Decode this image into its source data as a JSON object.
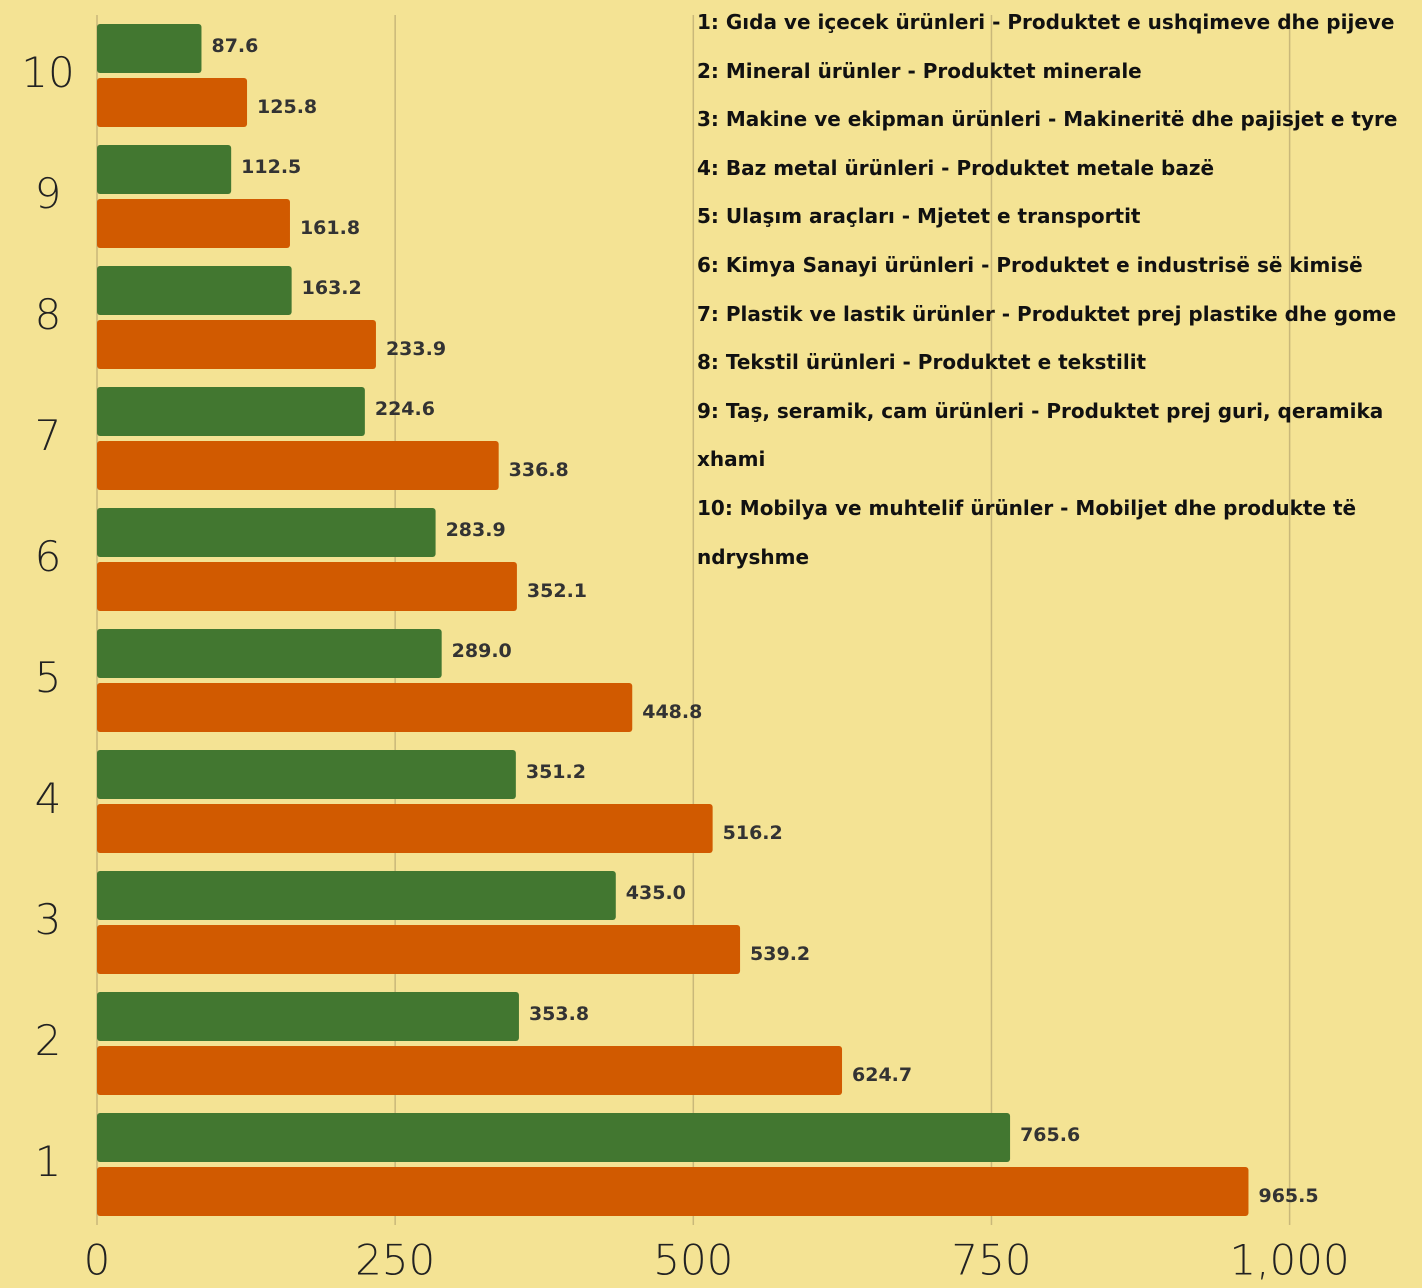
{
  "chart_data": {
    "type": "hbar",
    "categories": [
      "1",
      "2",
      "3",
      "4",
      "5",
      "6",
      "7",
      "8",
      "9",
      "10"
    ],
    "series": [
      {
        "color": "#427730",
        "values": [
          765.6,
          353.8,
          435.0,
          351.2,
          289.0,
          283.9,
          224.6,
          163.2,
          112.5,
          87.6
        ],
        "value_labels": [
          "765.6",
          "353.8",
          "435.0",
          "351.2",
          "289.0",
          "283.9",
          "224.6",
          "163.2",
          "112.5",
          "87.6"
        ]
      },
      {
        "color": "#d15a00",
        "values": [
          965.5,
          624.7,
          539.2,
          516.2,
          448.8,
          352.1,
          336.8,
          233.9,
          161.8,
          125.8
        ],
        "value_labels": [
          "965.5",
          "624.7",
          "539.2",
          "516.2",
          "448.8",
          "352.1",
          "336.8",
          "233.9",
          "161.8",
          "125.8"
        ]
      }
    ],
    "xlim": [
      0,
      1111
    ],
    "xticks": [
      0,
      250,
      500,
      750,
      {
        "value": 1000,
        "label": "1,000"
      }
    ],
    "grid": true,
    "annotations": [
      "1: Gıda ve içecek ürünleri - Produktet e ushqimeve dhe pijeve",
      "2: Mineral ürünler - Produktet minerale",
      "3: Makine ve ekipman ürünleri - Makineritë dhe pajisjet e tyre",
      "4: Baz metal ürünleri - Produktet metale bazë",
      "5: Ulaşım araçları - Mjetet e transportit",
      "6: Kimya Sanayi ürünleri - Produktet e industrisë së kimisë",
      "7: Plastik ve lastik ürünler - Produktet prej plastike dhe gome",
      "8: Tekstil ürünleri - Produktet e tekstilit",
      "9: Taş, seramik, cam ürünleri - Produktet prej guri, qeramika xhami",
      "10: Mobilya ve muhtelif ürünler - Mobiljet dhe produkte të ndryshme"
    ]
  }
}
